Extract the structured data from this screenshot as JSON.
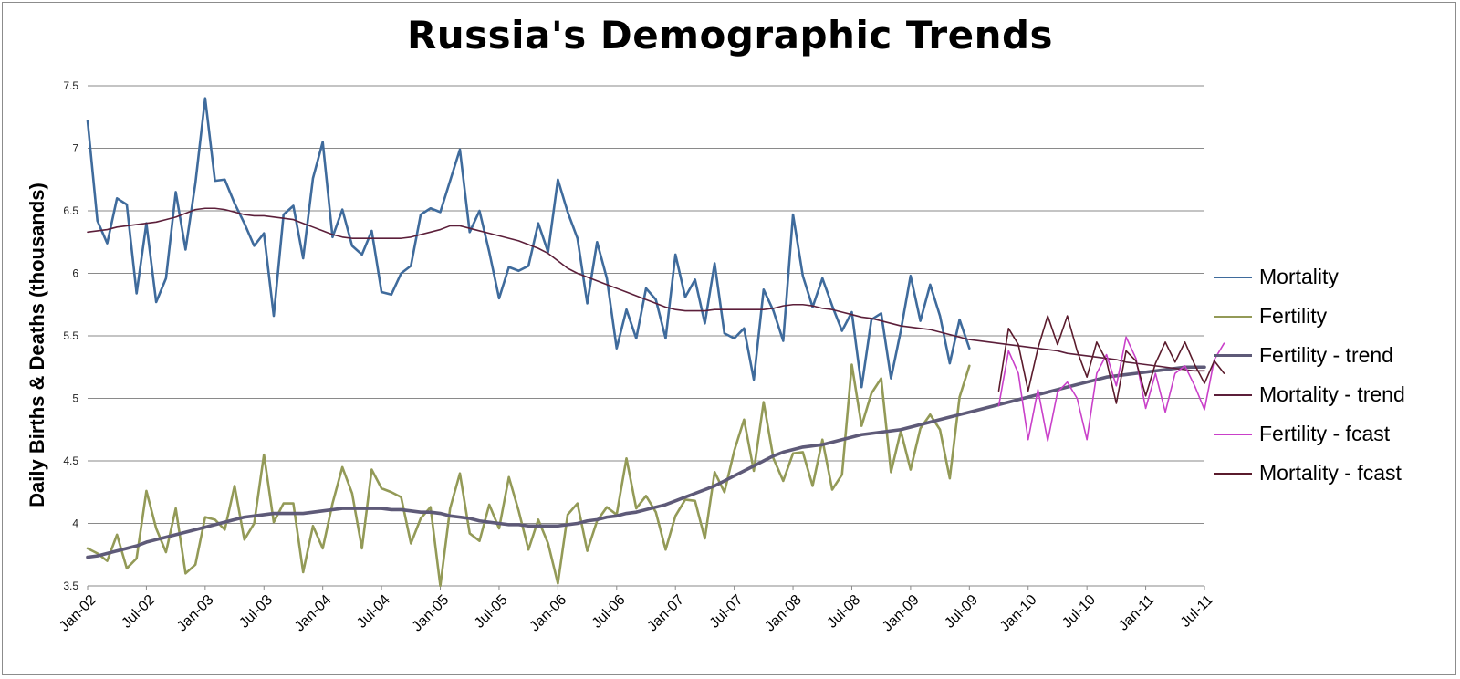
{
  "chart_data": {
    "type": "line",
    "title": "Russia's Demographic Trends",
    "ylabel": "Daily Births & Deaths (thousands)",
    "xlabel": "",
    "ylim": [
      3.5,
      7.5
    ],
    "yticks": [
      3.5,
      4,
      4.5,
      5,
      5.5,
      6,
      6.5,
      7,
      7.5
    ],
    "ytick_labels": [
      "3.5",
      "4",
      "4.5",
      "5",
      "5.5",
      "6",
      "6.5",
      "7",
      "7.5"
    ],
    "x_start": "2002-01",
    "x_end": "2011-07",
    "xtick_labels": [
      "Jan-02",
      "Jul-02",
      "Jan-03",
      "Jul-03",
      "Jan-04",
      "Jul-04",
      "Jan-05",
      "Jul-05",
      "Jan-06",
      "Jul-06",
      "Jan-07",
      "Jul-07",
      "Jan-08",
      "Jul-08",
      "Jan-09",
      "Jul-09",
      "Jan-10",
      "Jul-10",
      "Jan-11",
      "Jul-11"
    ],
    "grid": "horizontal",
    "legend_position": "right",
    "series": [
      {
        "name": "Mortality",
        "color": "#3f6b9c",
        "width": 2.6,
        "start": "2002-01",
        "values": [
          7.22,
          6.42,
          6.24,
          6.6,
          6.55,
          5.84,
          6.4,
          5.77,
          5.96,
          6.65,
          6.19,
          6.72,
          7.4,
          6.74,
          6.75,
          6.56,
          6.4,
          6.22,
          6.32,
          5.66,
          6.47,
          6.54,
          6.12,
          6.76,
          7.05,
          6.29,
          6.51,
          6.22,
          6.15,
          6.34,
          5.85,
          5.83,
          6.0,
          6.06,
          6.47,
          6.52,
          6.49,
          6.74,
          6.99,
          6.33,
          6.5,
          6.17,
          5.8,
          6.05,
          6.02,
          6.06,
          6.4,
          6.17,
          6.75,
          6.49,
          6.28,
          5.76,
          6.25,
          5.96,
          5.4,
          5.71,
          5.48,
          5.88,
          5.79,
          5.48,
          6.15,
          5.81,
          5.95,
          5.6,
          6.08,
          5.52,
          5.48,
          5.56,
          5.15,
          5.87,
          5.7,
          5.46,
          6.47,
          5.98,
          5.73,
          5.96,
          5.74,
          5.54,
          5.69,
          5.09,
          5.63,
          5.68,
          5.16,
          5.54,
          5.98,
          5.62,
          5.91,
          5.66,
          5.28,
          5.63,
          5.4
        ]
      },
      {
        "name": "Fertility",
        "color": "#939a57",
        "width": 2.6,
        "start": "2002-01",
        "values": [
          3.8,
          3.76,
          3.7,
          3.91,
          3.64,
          3.72,
          4.26,
          3.96,
          3.77,
          4.12,
          3.6,
          3.67,
          4.05,
          4.03,
          3.95,
          4.3,
          3.87,
          4.0,
          4.55,
          4.01,
          4.16,
          4.16,
          3.61,
          3.98,
          3.8,
          4.16,
          4.45,
          4.24,
          3.8,
          4.43,
          4.28,
          4.25,
          4.21,
          3.84,
          4.04,
          4.13,
          3.5,
          4.12,
          4.4,
          3.92,
          3.86,
          4.15,
          3.96,
          4.37,
          4.1,
          3.79,
          4.03,
          3.84,
          3.52,
          4.07,
          4.16,
          3.78,
          4.02,
          4.13,
          4.07,
          4.52,
          4.12,
          4.22,
          4.09,
          3.79,
          4.06,
          4.19,
          4.18,
          3.88,
          4.41,
          4.25,
          4.58,
          4.83,
          4.42,
          4.97,
          4.52,
          4.34,
          4.56,
          4.57,
          4.3,
          4.67,
          4.27,
          4.39,
          5.27,
          4.78,
          5.04,
          5.16,
          4.41,
          4.74,
          4.43,
          4.76,
          4.87,
          4.75,
          4.36,
          5.01,
          5.26
        ]
      },
      {
        "name": "Fertility - trend",
        "color": "#5e5a78",
        "width": 3.6,
        "start": "2002-01",
        "values": [
          3.73,
          3.74,
          3.76,
          3.78,
          3.8,
          3.82,
          3.85,
          3.87,
          3.89,
          3.91,
          3.93,
          3.95,
          3.97,
          3.99,
          4.01,
          4.03,
          4.05,
          4.06,
          4.07,
          4.08,
          4.08,
          4.08,
          4.08,
          4.09,
          4.1,
          4.11,
          4.12,
          4.12,
          4.12,
          4.12,
          4.12,
          4.11,
          4.11,
          4.1,
          4.09,
          4.09,
          4.08,
          4.06,
          4.05,
          4.04,
          4.02,
          4.01,
          4.0,
          3.99,
          3.99,
          3.98,
          3.98,
          3.98,
          3.98,
          3.99,
          4.0,
          4.02,
          4.03,
          4.05,
          4.06,
          4.08,
          4.09,
          4.11,
          4.13,
          4.15,
          4.18,
          4.21,
          4.24,
          4.27,
          4.3,
          4.34,
          4.38,
          4.42,
          4.46,
          4.5,
          4.54,
          4.57,
          4.59,
          4.61,
          4.62,
          4.63,
          4.65,
          4.67,
          4.69,
          4.71,
          4.72,
          4.73,
          4.74,
          4.75,
          4.77,
          4.79,
          4.81,
          4.83,
          4.85,
          4.87,
          4.89,
          4.91,
          4.93,
          4.95,
          4.97,
          4.99,
          5.01,
          5.03,
          5.05,
          5.07,
          5.09,
          5.11,
          5.13,
          5.15,
          5.17,
          5.18,
          5.19,
          5.2,
          5.21,
          5.22,
          5.23,
          5.24,
          5.25,
          5.25,
          5.25
        ]
      },
      {
        "name": "Mortality - trend",
        "color": "#5c1f3a",
        "width": 1.6,
        "start": "2002-01",
        "values": [
          6.33,
          6.34,
          6.35,
          6.37,
          6.38,
          6.39,
          6.4,
          6.41,
          6.43,
          6.45,
          6.48,
          6.51,
          6.52,
          6.52,
          6.51,
          6.49,
          6.47,
          6.46,
          6.46,
          6.45,
          6.44,
          6.43,
          6.4,
          6.37,
          6.34,
          6.31,
          6.29,
          6.28,
          6.28,
          6.28,
          6.28,
          6.28,
          6.28,
          6.29,
          6.31,
          6.33,
          6.35,
          6.38,
          6.38,
          6.36,
          6.34,
          6.32,
          6.3,
          6.28,
          6.26,
          6.23,
          6.2,
          6.16,
          6.1,
          6.04,
          6.0,
          5.97,
          5.94,
          5.91,
          5.88,
          5.85,
          5.82,
          5.79,
          5.76,
          5.73,
          5.71,
          5.7,
          5.7,
          5.7,
          5.71,
          5.71,
          5.71,
          5.71,
          5.71,
          5.71,
          5.72,
          5.74,
          5.75,
          5.75,
          5.74,
          5.72,
          5.71,
          5.69,
          5.67,
          5.65,
          5.64,
          5.62,
          5.6,
          5.58,
          5.57,
          5.56,
          5.55,
          5.53,
          5.51,
          5.49,
          5.47,
          5.46,
          5.45,
          5.44,
          5.43,
          5.42,
          5.41,
          5.4,
          5.39,
          5.38,
          5.36,
          5.35,
          5.34,
          5.33,
          5.32,
          5.31,
          5.29,
          5.28,
          5.27,
          5.26,
          5.25,
          5.24,
          5.23,
          5.22,
          5.22
        ]
      },
      {
        "name": "Fertility - fcast",
        "color": "#c940c9",
        "width": 1.6,
        "start": "2009-10",
        "values": [
          4.94,
          5.38,
          5.2,
          4.67,
          5.07,
          4.66,
          5.05,
          5.13,
          5.0,
          4.67,
          5.2,
          5.35,
          5.1,
          5.49,
          5.32,
          4.92,
          5.2,
          4.89,
          5.2,
          5.26,
          5.1,
          4.91,
          5.31,
          5.44
        ]
      },
      {
        "name": "Mortality - fcast",
        "color": "#5a1b2c",
        "width": 1.6,
        "start": "2009-10",
        "values": [
          5.06,
          5.56,
          5.43,
          5.06,
          5.4,
          5.66,
          5.43,
          5.66,
          5.38,
          5.17,
          5.45,
          5.3,
          4.96,
          5.38,
          5.3,
          5.02,
          5.28,
          5.45,
          5.29,
          5.45,
          5.27,
          5.12,
          5.3,
          5.2
        ]
      }
    ]
  }
}
